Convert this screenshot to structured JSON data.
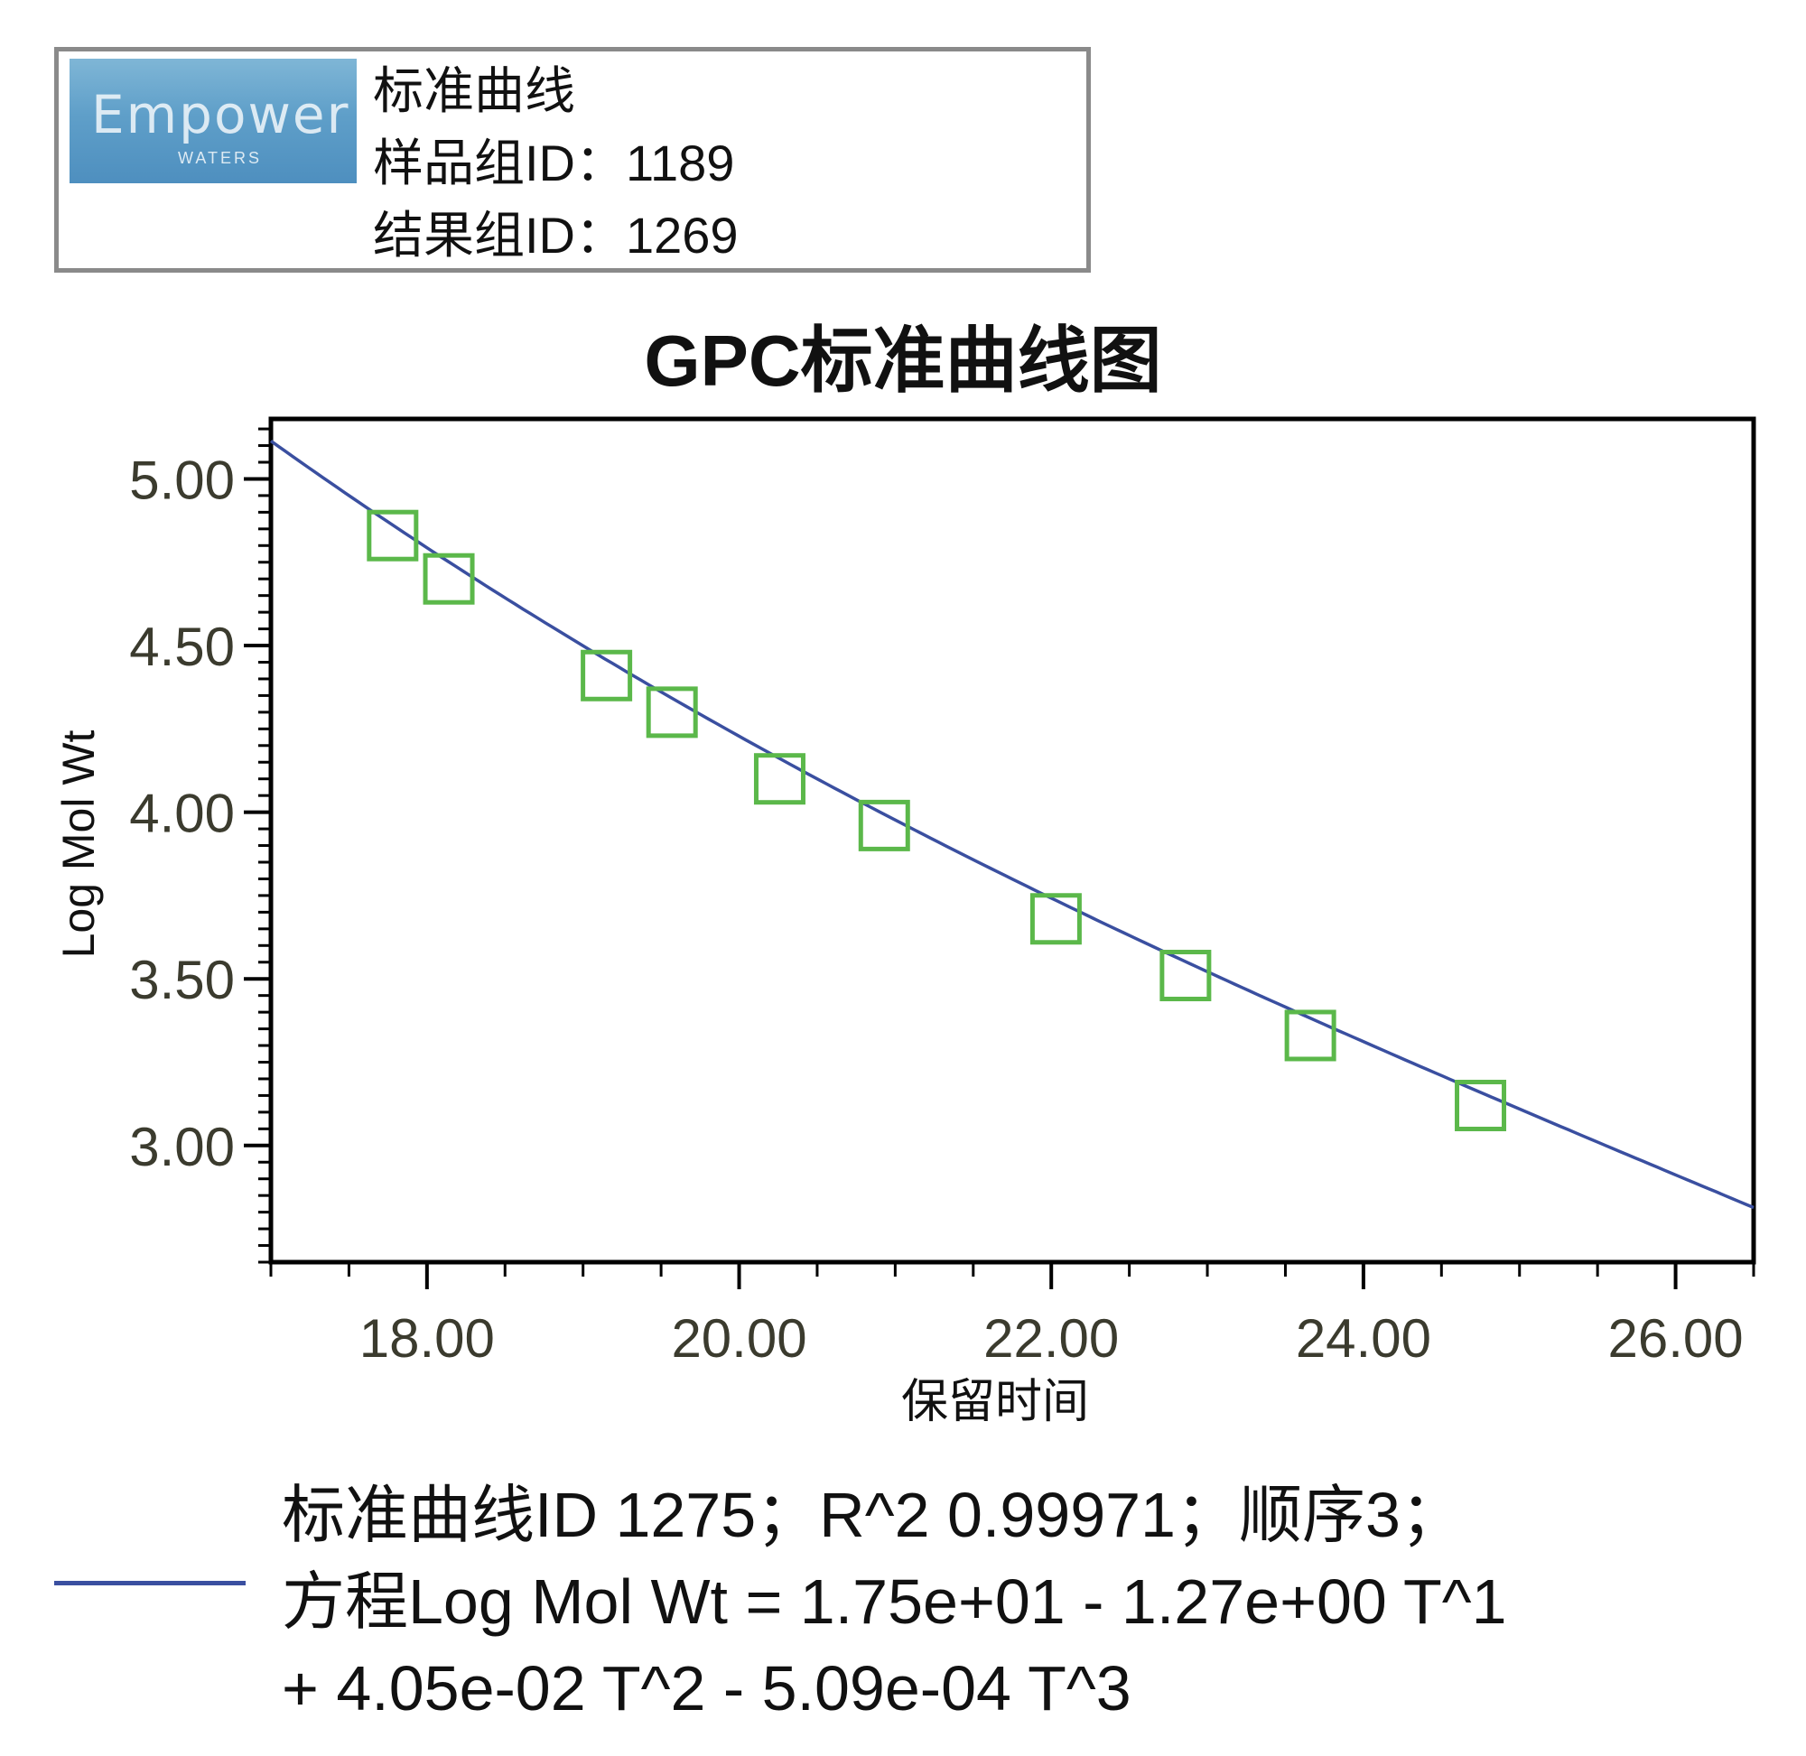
{
  "header": {
    "logo_text": "Empower 3",
    "logo_subtext": "WATERS",
    "lines": [
      "标准曲线",
      "样品组ID：1189",
      "结果组ID：1269"
    ]
  },
  "chart_data": {
    "type": "line",
    "title": "GPC标准曲线图",
    "xlabel": "保留时间",
    "ylabel": "Log Mol Wt",
    "xlim": [
      17.0,
      26.5
    ],
    "ylim": [
      2.65,
      5.18
    ],
    "x_ticks": [
      "18.00",
      "20.00",
      "22.00",
      "24.00",
      "26.00"
    ],
    "y_ticks": [
      "3.00",
      "3.50",
      "4.00",
      "4.50",
      "5.00"
    ],
    "grid": false,
    "series": [
      {
        "type": "line",
        "color": "#3a4fa0",
        "equation_coefficients": [
          17.5,
          -1.27,
          0.0405,
          -0.000509
        ]
      },
      {
        "type": "scatter",
        "marker": "square-open",
        "color": "#5bb84a",
        "points": [
          {
            "x": 17.78,
            "y": 4.83
          },
          {
            "x": 18.14,
            "y": 4.7
          },
          {
            "x": 19.15,
            "y": 4.41
          },
          {
            "x": 19.57,
            "y": 4.3
          },
          {
            "x": 20.26,
            "y": 4.1
          },
          {
            "x": 20.93,
            "y": 3.96
          },
          {
            "x": 22.03,
            "y": 3.68
          },
          {
            "x": 22.86,
            "y": 3.51
          },
          {
            "x": 23.66,
            "y": 3.33
          },
          {
            "x": 24.75,
            "y": 3.12
          }
        ]
      }
    ]
  },
  "legend": {
    "color": "#3a4fa0",
    "lines": [
      "标准曲线ID 1275；R^2 0.99971；顺序3；",
      "方程Log Mol Wt = 1.75e+01 - 1.27e+00 T^1",
      "+ 4.05e-02 T^2 - 5.09e-04 T^3"
    ]
  },
  "colors": {
    "axis_tick_label": "#3b3b2e",
    "curve": "#3a4fa0",
    "marker": "#5bb84a",
    "box_border": "#8a8a8a"
  }
}
